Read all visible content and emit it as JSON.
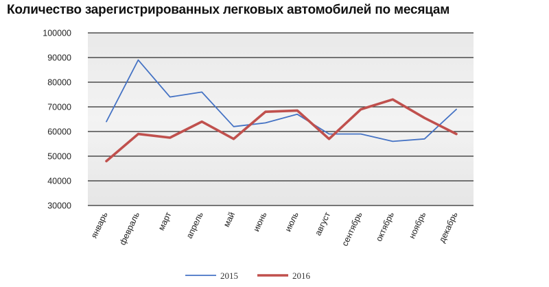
{
  "chart_data": {
    "type": "line",
    "title": "Количество зарегистрированных легковых автомобилей по месяцам",
    "categories": [
      "январь",
      "февраль",
      "март",
      "апрель",
      "май",
      "июнь",
      "июль",
      "август",
      "сентябрь",
      "октябрь",
      "ноябрь",
      "декабрь"
    ],
    "series": [
      {
        "name": "2015",
        "color": "#4472c4",
        "values": [
          64000,
          89000,
          74000,
          76000,
          62000,
          63500,
          67000,
          59000,
          59000,
          56000,
          57000,
          69000
        ]
      },
      {
        "name": "2016",
        "color": "#c0504d",
        "values": [
          48000,
          59000,
          57500,
          64000,
          57000,
          68000,
          68500,
          57000,
          69000,
          73000,
          65500,
          59000
        ]
      }
    ],
    "ylim": [
      30000,
      100000
    ],
    "yticks": [
      "30000",
      "40000",
      "50000",
      "60000",
      "70000",
      "80000",
      "90000",
      "100000"
    ],
    "grid": true,
    "legend": "bottom"
  }
}
